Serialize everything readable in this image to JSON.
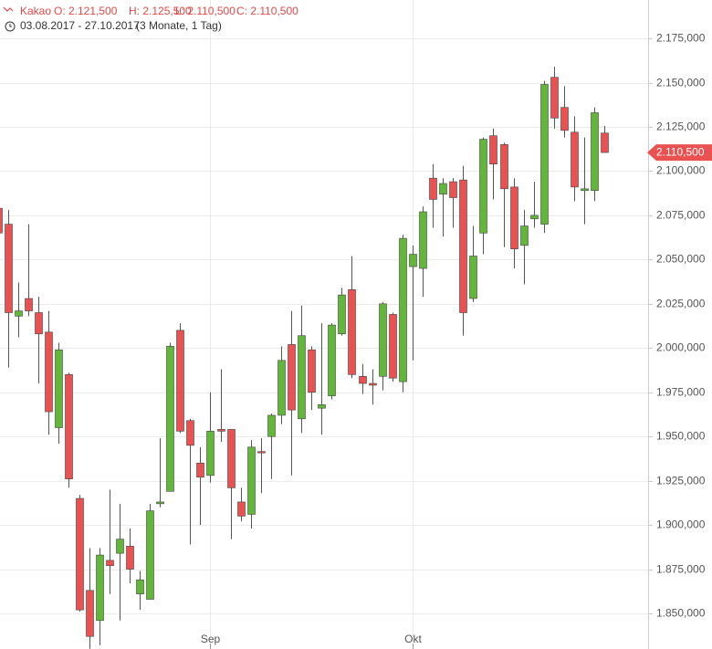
{
  "chart_data": {
    "type": "candlestick",
    "header": {
      "symbol": "Kakao",
      "open": "O: 2.121,500",
      "high": "H: 2.125,500",
      "low": "L: 2.110,500",
      "close": "C: 2.110,500",
      "range": "03.08.2017 - 27.10.2017",
      "period": "(3 Monate, 1 Tag)"
    },
    "categories": [
      null,
      null,
      null,
      null,
      null,
      null,
      null,
      null,
      null,
      null,
      null,
      null,
      null,
      null,
      null,
      null,
      null,
      null,
      null,
      null,
      null,
      "Sep",
      null,
      null,
      null,
      null,
      null,
      null,
      null,
      null,
      null,
      null,
      null,
      null,
      null,
      null,
      null,
      null,
      null,
      null,
      null,
      "Okt",
      null,
      null,
      null,
      null,
      null,
      null,
      null,
      null,
      null,
      null,
      null,
      null,
      null,
      null,
      null,
      null,
      null,
      null,
      null
    ],
    "ohlc": {
      "open": [
        2079,
        2070,
        2018,
        2028,
        2020,
        2009,
        1955,
        1985,
        1915,
        1863,
        1846,
        1880,
        1884,
        1888,
        1861,
        1858,
        1912,
        1919,
        2010,
        1959,
        1935,
        1928,
        1954,
        1954,
        1913,
        1906,
        1941.5,
        1950,
        1962,
        2002,
        1960,
        1999,
        1966,
        1973,
        2008,
        2033,
        1984,
        1980,
        1984,
        2019,
        1981,
        2046,
        2045,
        2096,
        2087,
        2094,
        2095,
        2028,
        2065,
        2120,
        2115,
        2091,
        2058,
        2073,
        2070,
        2153,
        2136,
        2122,
        2089,
        2089,
        2121.5
      ],
      "high": [
        2079,
        2078,
        2037,
        2070,
        2029,
        2021,
        2003,
        1986,
        1917,
        1887,
        1887,
        1920,
        1912,
        1898,
        1874,
        1912,
        1949,
        2003,
        2014,
        1960,
        1944,
        1975,
        1988,
        1954,
        1921,
        1948,
        1949,
        1963,
        2001,
        2021,
        2024,
        2001,
        2014,
        2014,
        2034,
        2052,
        1991,
        1988,
        2026,
        2020,
        2064,
        2058,
        2080,
        2104,
        2096,
        2096,
        2103,
        2069,
        2119,
        2124,
        2116,
        2096,
        2078,
        2094,
        2151,
        2159,
        2148,
        2131,
        2119,
        2136,
        2125.5
      ],
      "low": [
        2062,
        1989,
        2006,
        2018,
        1980,
        1951,
        1946,
        1921,
        1851,
        1830,
        1832,
        1861,
        1846,
        1867,
        1852,
        1858,
        1910,
        1919,
        1952,
        1889,
        1900,
        1924,
        1947,
        1892,
        1902,
        1898,
        1918,
        1926,
        1957,
        1928,
        1952,
        1965,
        1951,
        1971,
        2007,
        1983,
        1974,
        1968,
        1976,
        1981,
        1975,
        1993,
        2029,
        2068,
        2063,
        2068,
        2007,
        2026,
        2053,
        2084,
        2057,
        2045,
        2036,
        2068,
        2065,
        2124,
        2119,
        2083,
        2070,
        2083,
        2110.5
      ],
      "close": [
        2065,
        2020,
        2021,
        2021,
        2008,
        1964,
        1999,
        1926,
        1852,
        1837,
        1883,
        1877,
        1892,
        1875,
        1869,
        1908,
        1913,
        2001,
        1953,
        1945,
        1927,
        1953,
        1953,
        1921,
        1905,
        1944,
        1941,
        1962,
        1993,
        1965,
        2007,
        1975,
        1968,
        2013,
        2030,
        1985,
        1980,
        1979,
        2025,
        1983,
        2062,
        2053,
        2077,
        2084,
        2093,
        2085,
        2020,
        2052,
        2118,
        2104,
        2090,
        2056,
        2069,
        2075,
        2149,
        2130,
        2123,
        2091,
        2090,
        2133,
        2110.5
      ]
    },
    "color_up": "#62b63a",
    "color_down": "#ea5252",
    "last_price": {
      "value": 2110.5,
      "label": "2.110,500"
    },
    "ylim": [
      1829.9,
      2196.7
    ],
    "yticks": [
      {
        "value": 1850,
        "label": "1.850,000"
      },
      {
        "value": 1875,
        "label": "1.875,000"
      },
      {
        "value": 1900,
        "label": "1.900,000"
      },
      {
        "value": 1925,
        "label": "1.925,000"
      },
      {
        "value": 1950,
        "label": "1.950,000"
      },
      {
        "value": 1975,
        "label": "1.975,000"
      },
      {
        "value": 2000,
        "label": "2.000,000"
      },
      {
        "value": 2025,
        "label": "2.025,000"
      },
      {
        "value": 2050,
        "label": "2.050,000"
      },
      {
        "value": 2075,
        "label": "2.075,000"
      },
      {
        "value": 2100,
        "label": "2.100,000"
      },
      {
        "value": 2125,
        "label": "2.125,000"
      },
      {
        "value": 2150,
        "label": "2.150,000"
      },
      {
        "value": 2175,
        "label": "2.175,000"
      }
    ],
    "grid": true
  }
}
